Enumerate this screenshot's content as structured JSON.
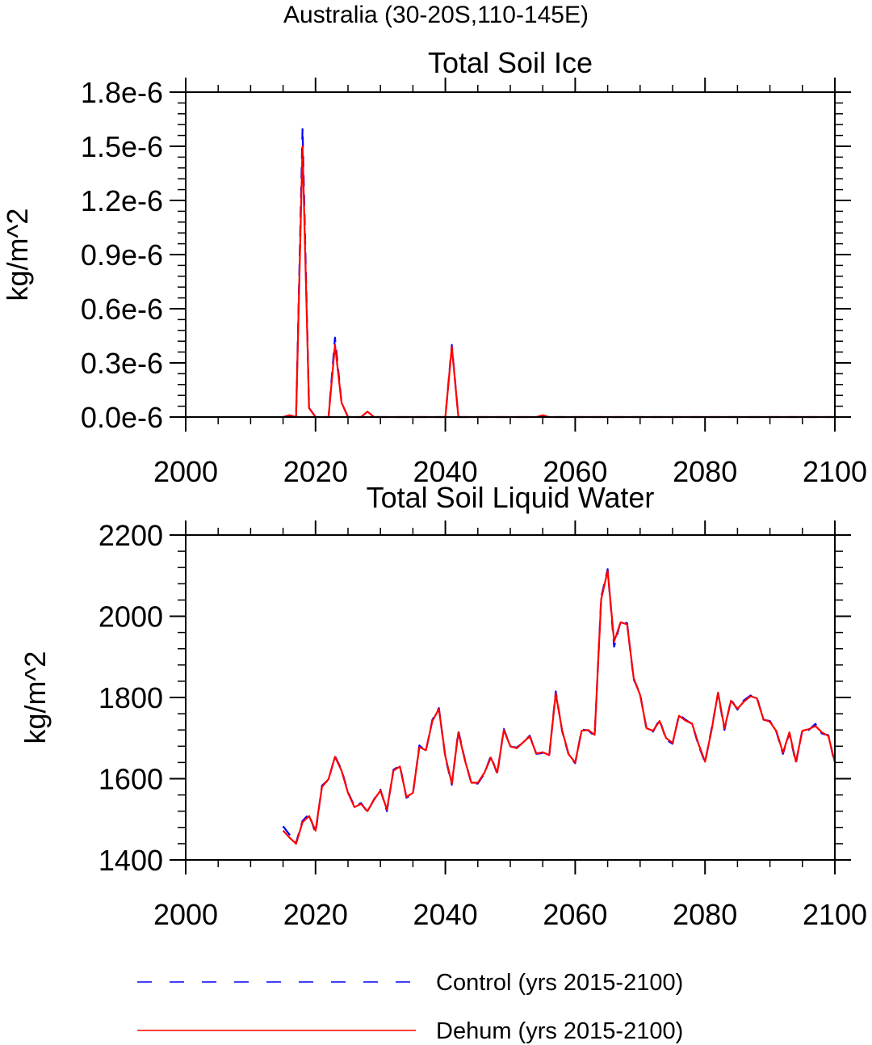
{
  "figure_title": "Australia (30-20S,110-145E)",
  "chart_data": [
    {
      "type": "line",
      "title": "Total Soil Ice",
      "xlabel": "",
      "ylabel": "kg/m^2",
      "xlim": [
        2000,
        2100
      ],
      "ylim": [
        0,
        1.8e-06
      ],
      "xticks": [
        2000,
        2020,
        2040,
        2060,
        2080,
        2100
      ],
      "yticks": [
        0,
        3e-07,
        6e-07,
        9e-07,
        1.2e-06,
        1.5e-06,
        1.8e-06
      ],
      "ytick_labels": [
        "0.0e-6",
        "0.3e-6",
        "0.6e-6",
        "0.9e-6",
        "1.2e-6",
        "1.5e-6",
        "1.8e-6"
      ],
      "x": [
        2015,
        2016,
        2017,
        2018,
        2019,
        2020,
        2021,
        2022,
        2023,
        2024,
        2025,
        2026,
        2027,
        2028,
        2029,
        2030,
        2031,
        2032,
        2033,
        2034,
        2035,
        2036,
        2037,
        2038,
        2039,
        2040,
        2041,
        2042,
        2043,
        2044,
        2045,
        2046,
        2047,
        2048,
        2049,
        2050,
        2051,
        2052,
        2053,
        2054,
        2055,
        2056,
        2057,
        2058,
        2059,
        2060,
        2061,
        2062,
        2063,
        2064,
        2065,
        2066,
        2067,
        2068,
        2069,
        2070,
        2071,
        2072,
        2073,
        2074,
        2075,
        2076,
        2077,
        2078,
        2079,
        2080,
        2081,
        2082,
        2083,
        2084,
        2085,
        2086,
        2087,
        2088,
        2089,
        2090,
        2091,
        2092,
        2093,
        2094,
        2095,
        2096,
        2097,
        2098,
        2099,
        2100
      ],
      "series": [
        {
          "name": "Control (yrs 2015-2100)",
          "color": "#0000ff",
          "dash": "dashed",
          "values": [
            0,
            1e-08,
            0,
            1.6e-06,
            5e-08,
            0,
            0,
            0,
            4.4e-07,
            8e-08,
            0,
            0,
            0,
            0,
            0,
            0,
            0,
            0,
            0,
            0,
            0,
            0,
            0,
            0,
            0,
            0,
            4e-07,
            0,
            0,
            0,
            0,
            0,
            0,
            0,
            0,
            0,
            0,
            0,
            0,
            0,
            5e-09,
            0,
            0,
            0,
            0,
            0,
            0,
            0,
            0,
            0,
            0,
            0,
            0,
            0,
            0,
            0,
            0,
            0,
            0,
            0,
            0,
            0,
            0,
            0,
            0,
            0,
            0,
            0,
            0,
            0,
            0,
            0,
            0,
            0,
            0,
            0,
            0,
            0,
            0,
            0,
            0,
            0,
            0,
            0,
            0,
            0
          ]
        },
        {
          "name": "Dehum (yrs 2015-2100)",
          "color": "#ff0000",
          "dash": "solid",
          "values": [
            0,
            1e-08,
            0,
            1.5e-06,
            5e-08,
            0,
            0,
            0,
            4e-07,
            8e-08,
            0,
            0,
            0,
            3e-08,
            0,
            0,
            0,
            0,
            0,
            0,
            0,
            0,
            0,
            0,
            0,
            0,
            3.9e-07,
            0,
            0,
            0,
            0,
            0,
            0,
            0,
            0,
            0,
            0,
            0,
            0,
            0,
            1e-08,
            0,
            0,
            0,
            0,
            0,
            0,
            0,
            0,
            0,
            0,
            0,
            0,
            0,
            0,
            0,
            0,
            0,
            0,
            0,
            0,
            0,
            0,
            0,
            0,
            0,
            0,
            0,
            0,
            0,
            0,
            0,
            0,
            0,
            0,
            0,
            0,
            0,
            0,
            0,
            0,
            0,
            0,
            0,
            0,
            0
          ]
        }
      ]
    },
    {
      "type": "line",
      "title": "Total Soil Liquid Water",
      "xlabel": "",
      "ylabel": "kg/m^2",
      "xlim": [
        2000,
        2100
      ],
      "ylim": [
        1400,
        2200
      ],
      "xticks": [
        2000,
        2020,
        2040,
        2060,
        2080,
        2100
      ],
      "yticks": [
        1400,
        1600,
        1800,
        2000,
        2200
      ],
      "ytick_labels": [
        "1400",
        "1600",
        "1800",
        "2000",
        "2200"
      ],
      "x": [
        2015,
        2016,
        2017,
        2018,
        2019,
        2020,
        2021,
        2022,
        2023,
        2024,
        2025,
        2026,
        2027,
        2028,
        2029,
        2030,
        2031,
        2032,
        2033,
        2034,
        2035,
        2036,
        2037,
        2038,
        2039,
        2040,
        2041,
        2042,
        2043,
        2044,
        2045,
        2046,
        2047,
        2048,
        2049,
        2050,
        2051,
        2052,
        2053,
        2054,
        2055,
        2056,
        2057,
        2058,
        2059,
        2060,
        2061,
        2062,
        2063,
        2064,
        2065,
        2066,
        2067,
        2068,
        2069,
        2070,
        2071,
        2072,
        2073,
        2074,
        2075,
        2076,
        2077,
        2078,
        2079,
        2080,
        2081,
        2082,
        2083,
        2084,
        2085,
        2086,
        2087,
        2088,
        2089,
        2090,
        2091,
        2092,
        2093,
        2094,
        2095,
        2096,
        2097,
        2098,
        2099,
        2100
      ],
      "series": [
        {
          "name": "Control (yrs 2015-2100)",
          "color": "#0000ff",
          "dash": "dashed",
          "values": [
            1483,
            1462,
            1443,
            1496,
            1513,
            1466,
            1583,
            1597,
            1656,
            1622,
            1567,
            1532,
            1540,
            1518,
            1549,
            1573,
            1520,
            1622,
            1632,
            1553,
            1562,
            1682,
            1668,
            1745,
            1774,
            1652,
            1585,
            1718,
            1648,
            1588,
            1588,
            1612,
            1656,
            1612,
            1723,
            1679,
            1677,
            1689,
            1706,
            1661,
            1663,
            1656,
            1815,
            1716,
            1658,
            1638,
            1721,
            1719,
            1705,
            2047,
            2116,
            1925,
            1988,
            1983,
            1845,
            1809,
            1721,
            1716,
            1746,
            1696,
            1686,
            1758,
            1745,
            1735,
            1682,
            1640,
            1722,
            1810,
            1720,
            1795,
            1770,
            1793,
            1805,
            1800,
            1745,
            1742,
            1715,
            1661,
            1712,
            1638,
            1721,
            1720,
            1735,
            1711,
            1707,
            1635
          ]
        },
        {
          "name": "Dehum (yrs 2015-2100)",
          "color": "#ff0000",
          "dash": "solid",
          "values": [
            1472,
            1455,
            1440,
            1493,
            1508,
            1472,
            1580,
            1599,
            1654,
            1620,
            1565,
            1530,
            1538,
            1520,
            1548,
            1571,
            1524,
            1620,
            1630,
            1555,
            1565,
            1678,
            1670,
            1742,
            1772,
            1655,
            1588,
            1714,
            1646,
            1590,
            1590,
            1614,
            1652,
            1615,
            1720,
            1680,
            1675,
            1690,
            1704,
            1662,
            1665,
            1658,
            1810,
            1718,
            1660,
            1640,
            1718,
            1720,
            1708,
            2042,
            2112,
            1938,
            1985,
            1980,
            1848,
            1806,
            1724,
            1718,
            1742,
            1700,
            1688,
            1755,
            1743,
            1736,
            1685,
            1642,
            1718,
            1812,
            1724,
            1792,
            1772,
            1790,
            1803,
            1798,
            1746,
            1740,
            1717,
            1664,
            1714,
            1642,
            1718,
            1722,
            1730,
            1714,
            1705,
            1640
          ]
        }
      ]
    }
  ],
  "legend": [
    {
      "label": "Control (yrs 2015-2100)",
      "color": "#0000ff",
      "dash": "dashed"
    },
    {
      "label": "Dehum (yrs 2015-2100)",
      "color": "#ff0000",
      "dash": "solid"
    }
  ]
}
